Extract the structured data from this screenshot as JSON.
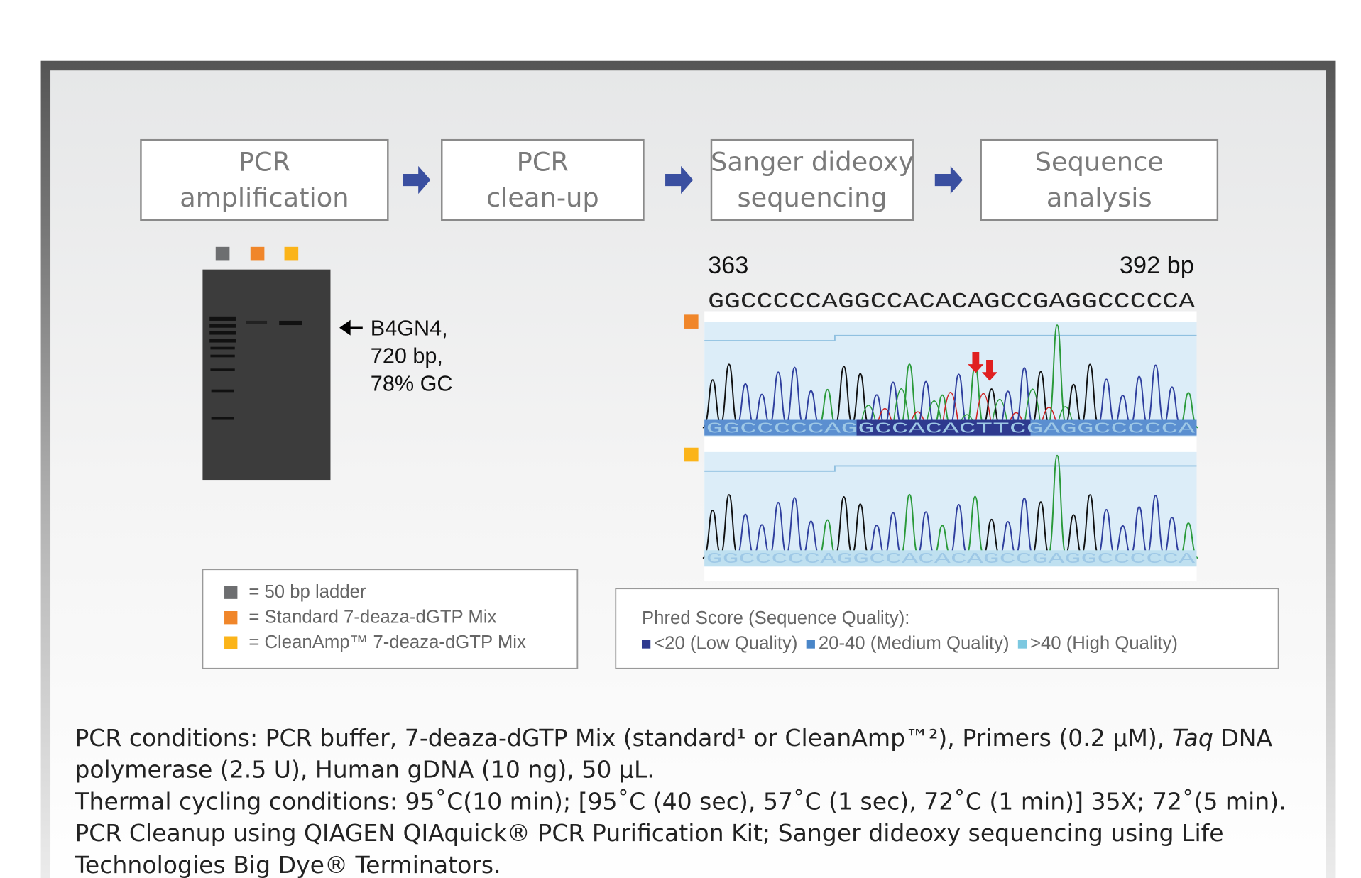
{
  "steps": [
    {
      "lines": [
        "PCR",
        "amplification"
      ]
    },
    {
      "lines": [
        "PCR",
        "clean-up"
      ]
    },
    {
      "lines": [
        "Sanger dideoxy",
        "sequencing"
      ]
    },
    {
      "lines": [
        "Sequence",
        "analysis"
      ]
    }
  ],
  "gel": {
    "label_lines": [
      "B4GN4,",
      "720 bp,",
      "78% GC"
    ]
  },
  "sequence": {
    "start": "363",
    "end": "392 bp",
    "reference": "GGCCCCCAGGCCACACAGCCGAGGCCCCCA",
    "traces": [
      {
        "calls": "GGCCCCCAGGCCACACTTCGAGGCCCCCA"
      },
      {
        "calls": "GGCCCCCAGGCCACACAGCCGAGGCCCCCA"
      }
    ]
  },
  "gel_legend": [
    "= 50 bp ladder",
    "= Standard 7-deaza-dGTP Mix",
    "= CleanAmp™ 7-deaza-dGTP Mix"
  ],
  "phred_legend": {
    "title": "Phred Score (Sequence Quality):",
    "items": [
      "<20 (Low Quality)",
      "20-40 (Medium Quality)",
      ">40 (High Quality)"
    ]
  },
  "conditions": [
    [
      "PCR conditions: PCR buffer, 7-deaza-dGTP Mix (standard¹ or CleanAmp™²), Primers (0.2 µM), ",
      "Taq",
      " DNA"
    ],
    [
      "polymerase (2.5 U), Human gDNA (10 ng), 50 µL."
    ],
    [
      "Thermal cycling conditions: 95˚C(10 min); [95˚C (40 sec), 57˚C (1 sec), 72˚C (1 min)] 35X; 72˚(5 min)."
    ],
    [
      "PCR Cleanup using QIAGEN QIAquick® PCR Purification Kit; Sanger dideoxy sequencing using Life"
    ],
    [
      "Technologies Big Dye® Terminators."
    ]
  ]
}
